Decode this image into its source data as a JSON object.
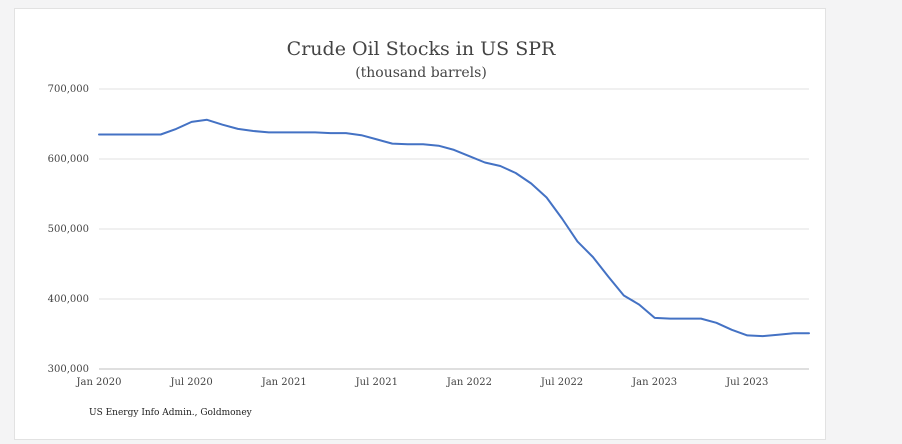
{
  "chart_data": {
    "type": "line",
    "title": "Crude Oil Stocks in US SPR",
    "subtitle": "(thousand barrels)",
    "source": "US Energy Info Admin., Goldmoney",
    "xlabel": "",
    "ylabel": "",
    "x_tick_labels": [
      "Jan 2020",
      "Jul 2020",
      "Jan 2021",
      "Jul 2021",
      "Jan 2022",
      "Jul 2022",
      "Jan 2023",
      "Jul 2023"
    ],
    "x_tick_dates": [
      "2020-01",
      "2020-07",
      "2021-01",
      "2021-07",
      "2022-01",
      "2022-07",
      "2023-01",
      "2023-07"
    ],
    "y_tick_labels": [
      "300,000",
      "400,000",
      "500,000",
      "600,000",
      "700,000"
    ],
    "ylim": [
      300000,
      700000
    ],
    "xlim": [
      "2020-01",
      "2023-11"
    ],
    "grid": "horizontal",
    "line_color": "#4472c4",
    "series": [
      {
        "x": [
          "2020-01",
          "2020-02",
          "2020-03",
          "2020-04",
          "2020-05",
          "2020-06",
          "2020-07",
          "2020-08",
          "2020-09",
          "2020-10",
          "2020-11",
          "2020-12",
          "2021-01",
          "2021-02",
          "2021-03",
          "2021-04",
          "2021-05",
          "2021-06",
          "2021-07",
          "2021-08",
          "2021-09",
          "2021-10",
          "2021-11",
          "2021-12",
          "2022-01",
          "2022-02",
          "2022-03",
          "2022-04",
          "2022-05",
          "2022-06",
          "2022-07",
          "2022-08",
          "2022-09",
          "2022-10",
          "2022-11",
          "2022-12",
          "2023-01",
          "2023-02",
          "2023-03",
          "2023-04",
          "2023-05",
          "2023-06",
          "2023-07",
          "2023-08",
          "2023-09",
          "2023-10",
          "2023-11"
        ],
        "values": [
          635000,
          635000,
          635000,
          635000,
          635000,
          643000,
          653000,
          656000,
          649000,
          643000,
          640000,
          638000,
          638000,
          638000,
          638000,
          637000,
          637000,
          634000,
          628000,
          622000,
          621000,
          621000,
          619000,
          613000,
          604000,
          595000,
          590000,
          580000,
          565000,
          545000,
          515000,
          482000,
          460000,
          432000,
          405000,
          392000,
          373000,
          372000,
          372000,
          372000,
          366000,
          356000,
          348000,
          347000,
          349000,
          351000,
          351000
        ]
      }
    ]
  }
}
